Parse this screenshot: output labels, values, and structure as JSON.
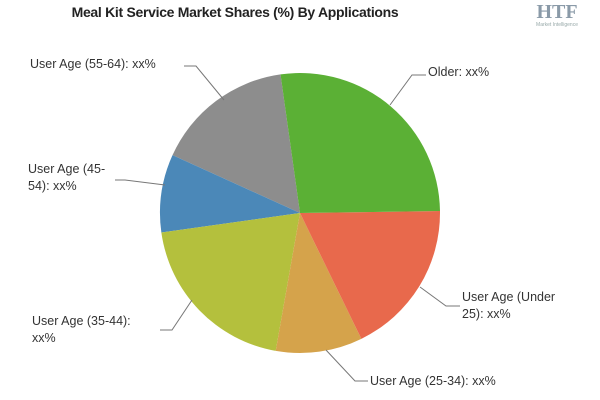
{
  "logo": {
    "mark": "HTF",
    "tagline": "Market Intelligence"
  },
  "chart_data": {
    "type": "pie",
    "title": "Meal Kit Service Market Shares (%) By Applications",
    "categories": [
      "Older: xx%",
      "User Age (Under 25): xx%",
      "User Age (25-34): xx%",
      "User Age (35-44): xx%",
      "User Age (45-54): xx%",
      "User Age (55-64): xx%"
    ],
    "values": [
      27,
      18,
      10,
      20,
      9,
      16
    ],
    "colors": [
      "#5bb035",
      "#e8694c",
      "#d5a34b",
      "#b4c03d",
      "#4b88b8",
      "#8d8d8d"
    ]
  }
}
